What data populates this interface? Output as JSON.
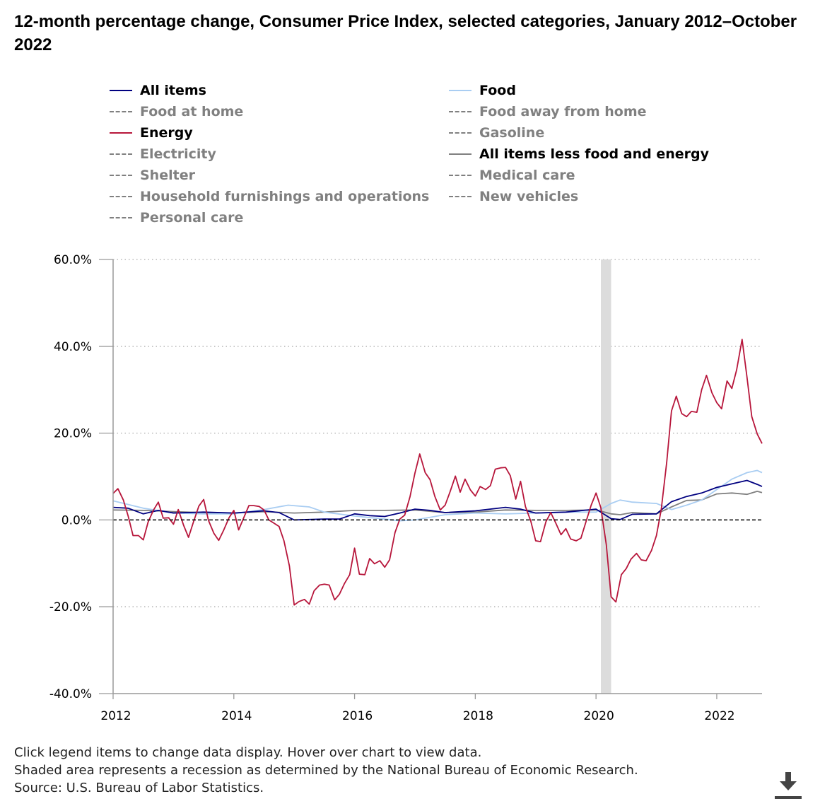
{
  "title": "12-month percentage change, Consumer Price Index, selected categories, January 2012–October 2022",
  "legend": [
    {
      "label": "All items",
      "color": "#000080",
      "active": true,
      "style": "solid"
    },
    {
      "label": "Food",
      "color": "#a9cdf2",
      "active": true,
      "style": "solid"
    },
    {
      "label": "Food at home",
      "color": "#808080",
      "active": false,
      "style": "dashed"
    },
    {
      "label": "Food away from home",
      "color": "#808080",
      "active": false,
      "style": "dashed"
    },
    {
      "label": "Energy",
      "color": "#b7163b",
      "active": true,
      "style": "solid"
    },
    {
      "label": "Gasoline",
      "color": "#808080",
      "active": false,
      "style": "dashed"
    },
    {
      "label": "Electricity",
      "color": "#808080",
      "active": false,
      "style": "dashed"
    },
    {
      "label": "All items less food and energy",
      "color": "#808080",
      "active": true,
      "style": "solid"
    },
    {
      "label": "Shelter",
      "color": "#808080",
      "active": false,
      "style": "dashed"
    },
    {
      "label": "Medical care",
      "color": "#808080",
      "active": false,
      "style": "dashed"
    },
    {
      "label": "Household furnishings and operations",
      "color": "#808080",
      "active": false,
      "style": "dashed"
    },
    {
      "label": "New vehicles",
      "color": "#808080",
      "active": false,
      "style": "dashed"
    },
    {
      "label": "Personal care",
      "color": "#808080",
      "active": false,
      "style": "dashed"
    }
  ],
  "notes": [
    "Click legend items to change data display. Hover over chart to view data.",
    "Shaded area represents a recession as determined by the National Bureau of Economic Research.",
    "Source: U.S. Bureau of Labor Statistics."
  ],
  "download_icon": "download-icon",
  "chart_data": {
    "type": "line",
    "title": "12-month percentage change, Consumer Price Index, selected categories, January 2012–October 2022",
    "xlim": [
      2012.0,
      2022.75
    ],
    "ylim": [
      -40,
      60
    ],
    "y_ticks": [
      60,
      40,
      20,
      0,
      -20,
      -40
    ],
    "y_tick_labels": [
      "60.0%",
      "40.0%",
      "20.0%",
      "0.0%",
      "-20.0%",
      "-40.0%"
    ],
    "x_ticks": [
      2012,
      2014,
      2016,
      2018,
      2020,
      2022
    ],
    "x_tick_labels": [
      "2012",
      "2014",
      "2016",
      "2018",
      "2020",
      "2022"
    ],
    "recession": [
      2020.08,
      2020.25
    ],
    "zero_line": true,
    "grid": "horizontal-dotted",
    "series": [
      {
        "name": "All items less food and energy",
        "color": "#808080",
        "points": [
          [
            2012.0,
            2.3
          ],
          [
            2012.5,
            2.2
          ],
          [
            2013.0,
            1.9
          ],
          [
            2013.5,
            1.7
          ],
          [
            2014.0,
            1.6
          ],
          [
            2014.5,
            1.9
          ],
          [
            2015.0,
            1.6
          ],
          [
            2015.5,
            1.8
          ],
          [
            2016.0,
            2.2
          ],
          [
            2016.5,
            2.2
          ],
          [
            2017.0,
            2.3
          ],
          [
            2017.5,
            1.7
          ],
          [
            2018.0,
            1.8
          ],
          [
            2018.5,
            2.3
          ],
          [
            2019.0,
            2.2
          ],
          [
            2019.5,
            2.2
          ],
          [
            2020.0,
            2.3
          ],
          [
            2020.25,
            1.4
          ],
          [
            2020.4,
            1.2
          ],
          [
            2020.6,
            1.7
          ],
          [
            2021.0,
            1.4
          ],
          [
            2021.25,
            3.0
          ],
          [
            2021.5,
            4.5
          ],
          [
            2021.75,
            4.6
          ],
          [
            2022.0,
            6.0
          ],
          [
            2022.25,
            6.2
          ],
          [
            2022.5,
            5.9
          ],
          [
            2022.67,
            6.6
          ],
          [
            2022.75,
            6.3
          ]
        ]
      },
      {
        "name": "Food",
        "color": "#a9cdf2",
        "points": [
          [
            2012.0,
            4.4
          ],
          [
            2012.5,
            2.7
          ],
          [
            2013.0,
            1.6
          ],
          [
            2013.5,
            1.4
          ],
          [
            2014.0,
            1.4
          ],
          [
            2014.5,
            2.4
          ],
          [
            2014.9,
            3.4
          ],
          [
            2015.25,
            3.0
          ],
          [
            2015.5,
            1.8
          ],
          [
            2016.0,
            0.9
          ],
          [
            2016.5,
            0.2
          ],
          [
            2016.75,
            -0.2
          ],
          [
            2017.0,
            0.0
          ],
          [
            2017.5,
            1.2
          ],
          [
            2018.0,
            1.6
          ],
          [
            2018.5,
            1.4
          ],
          [
            2019.0,
            1.6
          ],
          [
            2019.5,
            1.8
          ],
          [
            2020.0,
            1.8
          ],
          [
            2020.25,
            3.8
          ],
          [
            2020.4,
            4.6
          ],
          [
            2020.6,
            4.1
          ],
          [
            2021.0,
            3.8
          ],
          [
            2021.25,
            2.4
          ],
          [
            2021.5,
            3.4
          ],
          [
            2021.75,
            4.6
          ],
          [
            2022.0,
            7.0
          ],
          [
            2022.25,
            9.4
          ],
          [
            2022.5,
            10.9
          ],
          [
            2022.67,
            11.4
          ],
          [
            2022.75,
            10.9
          ]
        ]
      },
      {
        "name": "All items",
        "color": "#000080",
        "points": [
          [
            2012.0,
            2.9
          ],
          [
            2012.25,
            2.7
          ],
          [
            2012.5,
            1.4
          ],
          [
            2012.75,
            2.2
          ],
          [
            2013.0,
            1.6
          ],
          [
            2013.5,
            1.8
          ],
          [
            2014.0,
            1.6
          ],
          [
            2014.5,
            2.1
          ],
          [
            2014.75,
            1.7
          ],
          [
            2015.0,
            0.0
          ],
          [
            2015.5,
            0.2
          ],
          [
            2015.75,
            0.2
          ],
          [
            2016.0,
            1.4
          ],
          [
            2016.25,
            1.0
          ],
          [
            2016.5,
            0.8
          ],
          [
            2016.75,
            1.6
          ],
          [
            2017.0,
            2.5
          ],
          [
            2017.25,
            2.2
          ],
          [
            2017.5,
            1.7
          ],
          [
            2018.0,
            2.1
          ],
          [
            2018.5,
            2.9
          ],
          [
            2018.75,
            2.5
          ],
          [
            2019.0,
            1.6
          ],
          [
            2019.5,
            1.8
          ],
          [
            2020.0,
            2.5
          ],
          [
            2020.25,
            0.3
          ],
          [
            2020.4,
            0.1
          ],
          [
            2020.6,
            1.3
          ],
          [
            2021.0,
            1.4
          ],
          [
            2021.25,
            4.2
          ],
          [
            2021.5,
            5.4
          ],
          [
            2021.75,
            6.2
          ],
          [
            2022.0,
            7.5
          ],
          [
            2022.25,
            8.3
          ],
          [
            2022.5,
            9.1
          ],
          [
            2022.67,
            8.2
          ],
          [
            2022.75,
            7.7
          ]
        ]
      },
      {
        "name": "Energy",
        "color": "#b7163b",
        "points": [
          [
            2012.0,
            6.1
          ],
          [
            2012.08,
            7.2
          ],
          [
            2012.17,
            4.6
          ],
          [
            2012.25,
            0.9
          ],
          [
            2012.33,
            -3.6
          ],
          [
            2012.42,
            -3.6
          ],
          [
            2012.5,
            -4.6
          ],
          [
            2012.58,
            -0.5
          ],
          [
            2012.67,
            2.3
          ],
          [
            2012.75,
            4.1
          ],
          [
            2012.83,
            0.4
          ],
          [
            2012.92,
            0.5
          ],
          [
            2013.0,
            -1.0
          ],
          [
            2013.08,
            2.4
          ],
          [
            2013.17,
            -1.3
          ],
          [
            2013.25,
            -4.0
          ],
          [
            2013.33,
            -0.5
          ],
          [
            2013.42,
            3.2
          ],
          [
            2013.5,
            4.7
          ],
          [
            2013.58,
            -0.1
          ],
          [
            2013.67,
            -3.1
          ],
          [
            2013.75,
            -4.7
          ],
          [
            2013.83,
            -2.4
          ],
          [
            2013.92,
            0.5
          ],
          [
            2014.0,
            2.2
          ],
          [
            2014.08,
            -2.3
          ],
          [
            2014.17,
            0.7
          ],
          [
            2014.25,
            3.3
          ],
          [
            2014.33,
            3.3
          ],
          [
            2014.42,
            3.1
          ],
          [
            2014.5,
            2.3
          ],
          [
            2014.58,
            0.0
          ],
          [
            2014.67,
            -0.8
          ],
          [
            2014.75,
            -1.5
          ],
          [
            2014.83,
            -4.8
          ],
          [
            2014.92,
            -10.6
          ],
          [
            2015.0,
            -19.6
          ],
          [
            2015.08,
            -18.8
          ],
          [
            2015.17,
            -18.3
          ],
          [
            2015.25,
            -19.4
          ],
          [
            2015.33,
            -16.3
          ],
          [
            2015.42,
            -15.0
          ],
          [
            2015.5,
            -14.8
          ],
          [
            2015.58,
            -15.0
          ],
          [
            2015.67,
            -18.4
          ],
          [
            2015.75,
            -17.1
          ],
          [
            2015.83,
            -14.7
          ],
          [
            2015.92,
            -12.6
          ],
          [
            2016.0,
            -6.5
          ],
          [
            2016.08,
            -12.5
          ],
          [
            2016.17,
            -12.6
          ],
          [
            2016.25,
            -8.9
          ],
          [
            2016.33,
            -10.1
          ],
          [
            2016.42,
            -9.4
          ],
          [
            2016.5,
            -10.9
          ],
          [
            2016.58,
            -9.2
          ],
          [
            2016.67,
            -2.9
          ],
          [
            2016.75,
            0.2
          ],
          [
            2016.83,
            1.1
          ],
          [
            2016.92,
            5.4
          ],
          [
            2017.0,
            10.8
          ],
          [
            2017.08,
            15.2
          ],
          [
            2017.17,
            10.9
          ],
          [
            2017.25,
            9.3
          ],
          [
            2017.33,
            5.4
          ],
          [
            2017.42,
            2.3
          ],
          [
            2017.5,
            3.4
          ],
          [
            2017.58,
            6.4
          ],
          [
            2017.67,
            10.1
          ],
          [
            2017.75,
            6.4
          ],
          [
            2017.83,
            9.4
          ],
          [
            2017.92,
            6.9
          ],
          [
            2018.0,
            5.5
          ],
          [
            2018.08,
            7.7
          ],
          [
            2018.17,
            7.0
          ],
          [
            2018.25,
            7.9
          ],
          [
            2018.33,
            11.7
          ],
          [
            2018.42,
            12.0
          ],
          [
            2018.5,
            12.1
          ],
          [
            2018.58,
            10.2
          ],
          [
            2018.67,
            4.8
          ],
          [
            2018.75,
            8.9
          ],
          [
            2018.83,
            3.1
          ],
          [
            2018.92,
            -0.3
          ],
          [
            2019.0,
            -4.8
          ],
          [
            2019.08,
            -5.0
          ],
          [
            2019.17,
            -0.4
          ],
          [
            2019.25,
            1.7
          ],
          [
            2019.33,
            -0.6
          ],
          [
            2019.42,
            -3.4
          ],
          [
            2019.5,
            -2.0
          ],
          [
            2019.58,
            -4.4
          ],
          [
            2019.67,
            -4.8
          ],
          [
            2019.75,
            -4.2
          ],
          [
            2019.83,
            -0.6
          ],
          [
            2019.92,
            3.4
          ],
          [
            2020.0,
            6.2
          ],
          [
            2020.08,
            2.8
          ],
          [
            2020.17,
            -5.7
          ],
          [
            2020.25,
            -17.7
          ],
          [
            2020.33,
            -18.9
          ],
          [
            2020.42,
            -12.6
          ],
          [
            2020.5,
            -11.2
          ],
          [
            2020.58,
            -9.0
          ],
          [
            2020.67,
            -7.7
          ],
          [
            2020.75,
            -9.2
          ],
          [
            2020.83,
            -9.4
          ],
          [
            2020.92,
            -7.0
          ],
          [
            2021.0,
            -3.6
          ],
          [
            2021.08,
            2.4
          ],
          [
            2021.17,
            13.2
          ],
          [
            2021.25,
            25.1
          ],
          [
            2021.33,
            28.5
          ],
          [
            2021.42,
            24.5
          ],
          [
            2021.5,
            23.8
          ],
          [
            2021.58,
            25.0
          ],
          [
            2021.67,
            24.8
          ],
          [
            2021.75,
            30.0
          ],
          [
            2021.83,
            33.3
          ],
          [
            2021.92,
            29.3
          ],
          [
            2022.0,
            27.0
          ],
          [
            2022.08,
            25.6
          ],
          [
            2022.17,
            32.0
          ],
          [
            2022.25,
            30.3
          ],
          [
            2022.33,
            34.6
          ],
          [
            2022.42,
            41.6
          ],
          [
            2022.5,
            32.9
          ],
          [
            2022.58,
            23.8
          ],
          [
            2022.67,
            19.8
          ],
          [
            2022.75,
            17.6
          ]
        ]
      }
    ]
  }
}
